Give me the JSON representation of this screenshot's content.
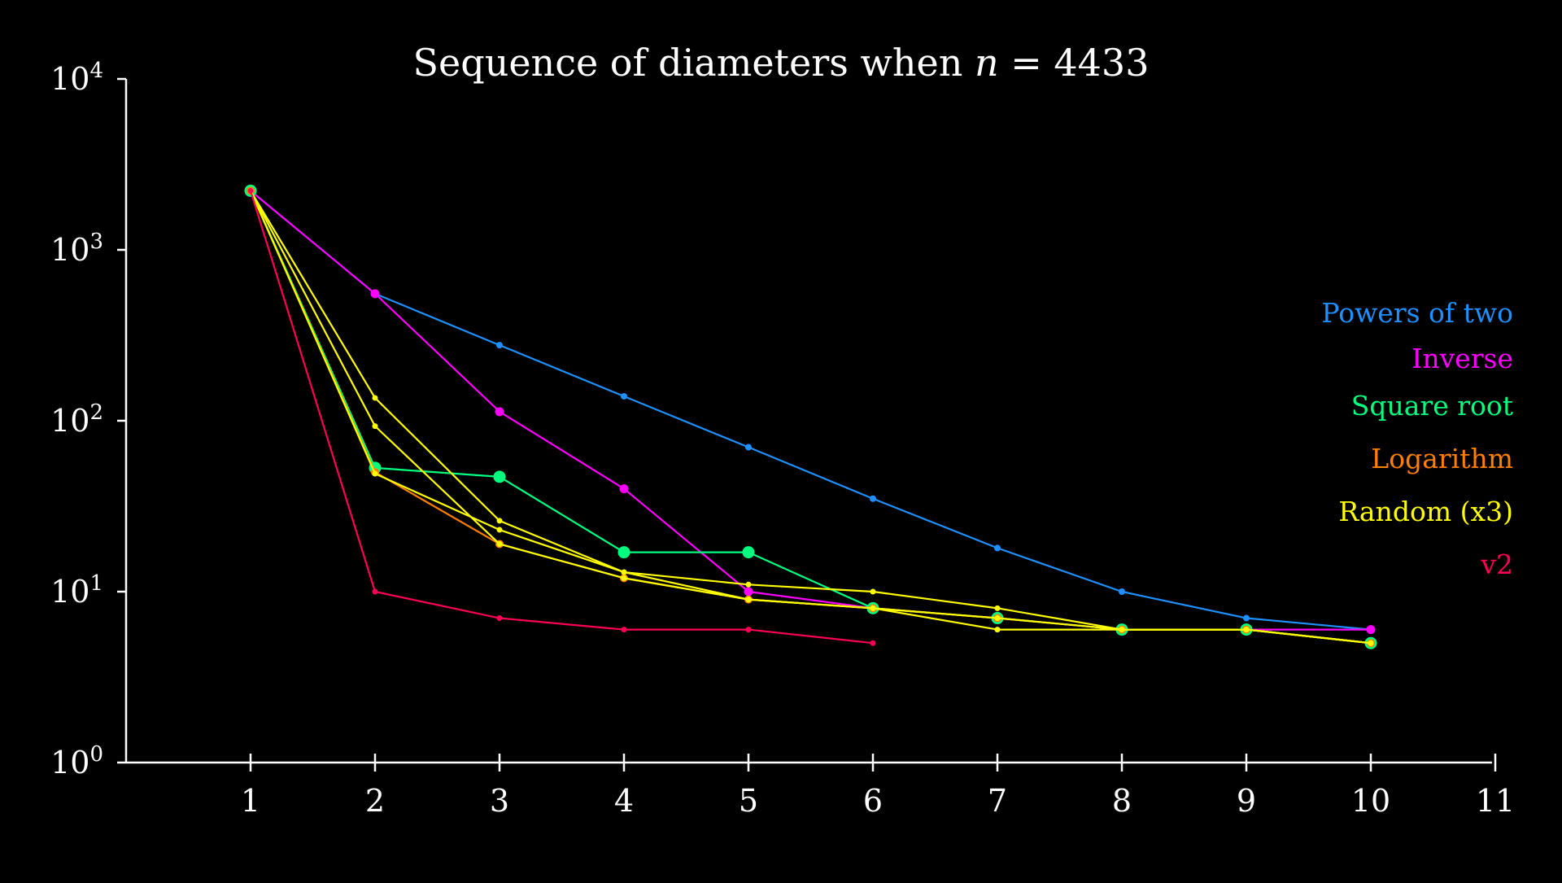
{
  "chart_data": {
    "type": "line",
    "title_prefix": "Sequence of diameters when ",
    "title_var": "n",
    "title_suffix": " = 4433",
    "xlabel": "",
    "ylabel": "",
    "x_ticks": [
      "1",
      "2",
      "3",
      "4",
      "5",
      "6",
      "7",
      "8",
      "9",
      "10",
      "11"
    ],
    "xlim": [
      0,
      11
    ],
    "y_scale": "log",
    "ylim": [
      1,
      10000
    ],
    "y_ticks": [
      {
        "value": 1,
        "base": "10",
        "exp": "0"
      },
      {
        "value": 10,
        "base": "10",
        "exp": "1"
      },
      {
        "value": 100,
        "base": "10",
        "exp": "2"
      },
      {
        "value": 1000,
        "base": "10",
        "exp": "3"
      },
      {
        "value": 10000,
        "base": "10",
        "exp": "4"
      }
    ],
    "grid": false,
    "legend_position": "right",
    "legend": [
      {
        "label": "Powers of two",
        "color": "#1e90ff"
      },
      {
        "label": "Inverse",
        "color": "#ff00ff"
      },
      {
        "label": "Square root",
        "color": "#00ff7f"
      },
      {
        "label": "Logarithm",
        "color": "#ff7f00"
      },
      {
        "label": "Random (x3)",
        "color": "#ffff00"
      },
      {
        "label": "v2",
        "color": "#ff0055"
      }
    ],
    "series": [
      {
        "key": "powers-of-two",
        "color": "#1e90ff",
        "marker": 4,
        "x": [
          1,
          2,
          3,
          4,
          5,
          6,
          7,
          8,
          9,
          10
        ],
        "y": [
          2216,
          554,
          277,
          139,
          70,
          35,
          18,
          10,
          7,
          6
        ]
      },
      {
        "key": "inverse",
        "color": "#ff00ff",
        "marker": 5.5,
        "x": [
          1,
          2,
          3,
          4,
          5,
          6,
          7,
          8,
          9,
          10
        ],
        "y": [
          2216,
          554,
          113,
          40,
          10,
          8,
          7,
          6,
          6,
          6
        ]
      },
      {
        "key": "square-root",
        "color": "#00ff7f",
        "marker": 7.5,
        "x": [
          1,
          2,
          3,
          4,
          5,
          6,
          7,
          8,
          9,
          10
        ],
        "y": [
          2216,
          53,
          47,
          17,
          17,
          8,
          7,
          6,
          6,
          5
        ]
      },
      {
        "key": "logarithm",
        "color": "#ff7f00",
        "marker": 5,
        "x": [
          1,
          2,
          3,
          4,
          5,
          6,
          7,
          8,
          9,
          10
        ],
        "y": [
          2216,
          50,
          19,
          12,
          9,
          8,
          7,
          6,
          6,
          5
        ]
      },
      {
        "key": "random-1",
        "color": "#ffff00",
        "marker": 3.5,
        "x": [
          1,
          2,
          3,
          4,
          5,
          6,
          7,
          8,
          9,
          10
        ],
        "y": [
          2216,
          136,
          26,
          13,
          11,
          10,
          8,
          6,
          6,
          5
        ]
      },
      {
        "key": "random-2",
        "color": "#ffff00",
        "marker": 3.5,
        "x": [
          1,
          2,
          3,
          4,
          5,
          6,
          7,
          8,
          9,
          10
        ],
        "y": [
          2216,
          93,
          19,
          12,
          9,
          8,
          6,
          6,
          6,
          5
        ]
      },
      {
        "key": "random-3",
        "color": "#ffff00",
        "marker": 3.5,
        "x": [
          1,
          2,
          3,
          4,
          5,
          6,
          7,
          8,
          9,
          10
        ],
        "y": [
          2216,
          49,
          23,
          13,
          9,
          8,
          7,
          6,
          6,
          5
        ]
      },
      {
        "key": "v2",
        "color": "#ff0055",
        "marker": 3.5,
        "x": [
          1,
          2,
          3,
          4,
          5,
          6
        ],
        "y": [
          2216,
          10,
          7,
          6,
          6,
          5
        ]
      }
    ]
  }
}
